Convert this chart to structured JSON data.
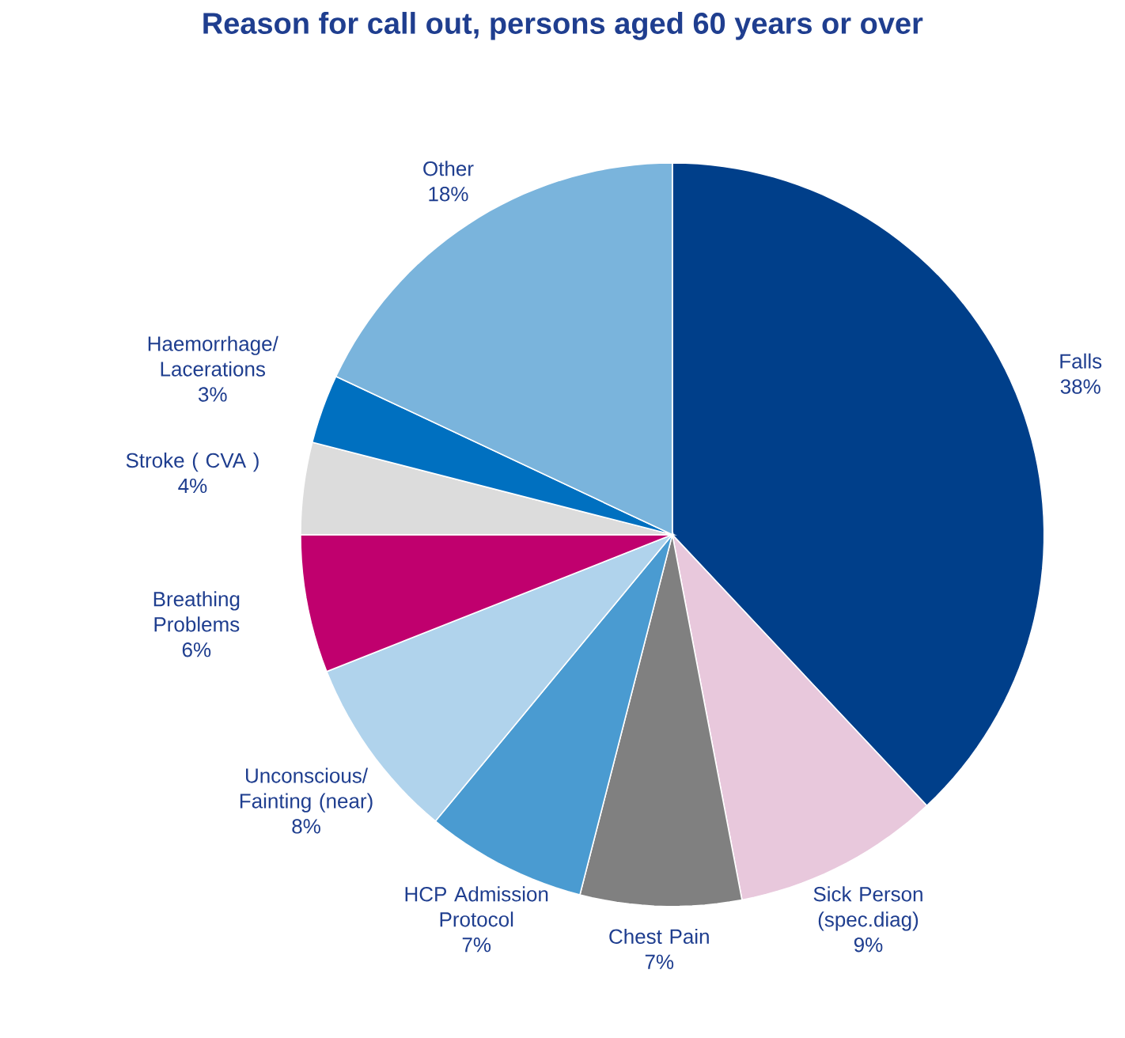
{
  "chart_data": {
    "type": "pie",
    "title": "Reason for call out, persons aged 60 years or over",
    "categories": [
      "Falls",
      "Sick Person (spec.diag)",
      "Chest Pain",
      "HCP Admission Protocol",
      "Unconscious/ Fainting (near)",
      "Breathing Problems",
      "Stroke ( CVA )",
      "Haemorrhage/ Lacerations",
      "Other"
    ],
    "values": [
      38,
      9,
      7,
      7,
      8,
      6,
      4,
      3,
      18
    ],
    "value_labels": [
      "38%",
      "9%",
      "7%",
      "7%",
      "8%",
      "6%",
      "4%",
      "3%",
      "18%"
    ],
    "colors": [
      "#003f8a",
      "#e8c8dc",
      "#808080",
      "#4a9bd1",
      "#b0d3ec",
      "#c0006e",
      "#dcdcdc",
      "#0070c0",
      "#7ab4dc"
    ]
  }
}
